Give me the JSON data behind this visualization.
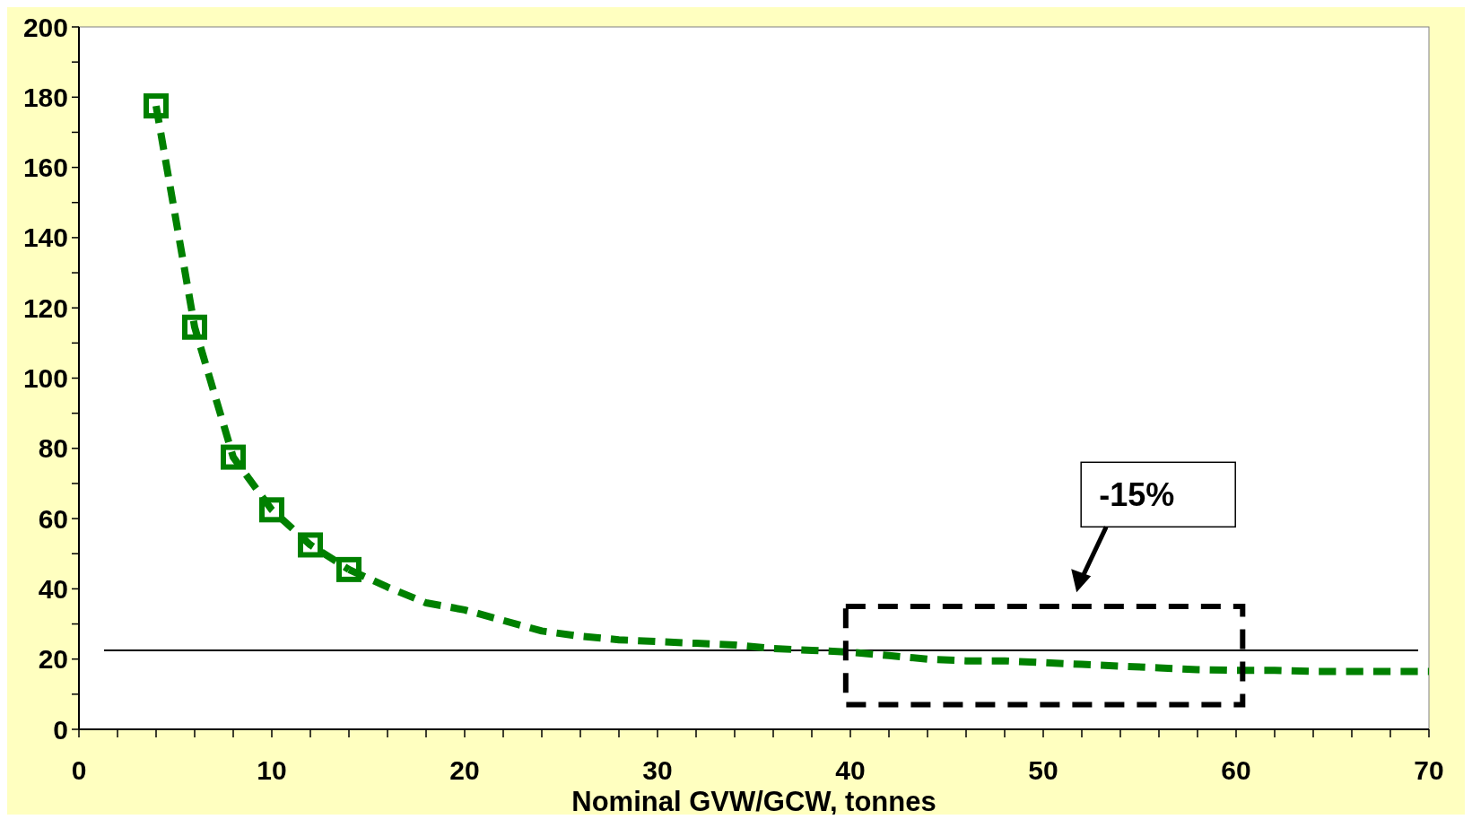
{
  "chart_data": {
    "type": "line",
    "xlabel": "Nominal GVW/GCW, tonnes",
    "xlim": [
      0,
      70
    ],
    "ylim": [
      0,
      200
    ],
    "xticks": [
      0,
      {
        "value": 2,
        "label": null
      },
      {
        "value": 4,
        "label": null
      },
      {
        "value": 6,
        "label": null
      },
      {
        "value": 8,
        "label": null
      },
      10,
      {
        "value": 12,
        "label": null
      },
      {
        "value": 14,
        "label": null
      },
      {
        "value": 16,
        "label": null
      },
      {
        "value": 18,
        "label": null
      },
      20,
      {
        "value": 22,
        "label": null
      },
      {
        "value": 24,
        "label": null
      },
      {
        "value": 26,
        "label": null
      },
      {
        "value": 28,
        "label": null
      },
      30,
      {
        "value": 32,
        "label": null
      },
      {
        "value": 34,
        "label": null
      },
      {
        "value": 36,
        "label": null
      },
      {
        "value": 38,
        "label": null
      },
      40,
      {
        "value": 42,
        "label": null
      },
      {
        "value": 44,
        "label": null
      },
      {
        "value": 46,
        "label": null
      },
      {
        "value": 48,
        "label": null
      },
      50,
      {
        "value": 52,
        "label": null
      },
      {
        "value": 54,
        "label": null
      },
      {
        "value": 56,
        "label": null
      },
      {
        "value": 58,
        "label": null
      },
      60,
      {
        "value": 62,
        "label": null
      },
      {
        "value": 64,
        "label": null
      },
      {
        "value": 66,
        "label": null
      },
      {
        "value": 68,
        "label": null
      },
      70
    ],
    "yticks": [
      0,
      {
        "value": 10,
        "label": null
      },
      20,
      {
        "value": 30,
        "label": null
      },
      40,
      {
        "value": 50,
        "label": null
      },
      60,
      {
        "value": 70,
        "label": null
      },
      80,
      {
        "value": 90,
        "label": null
      },
      100,
      {
        "value": 110,
        "label": null
      },
      120,
      {
        "value": 130,
        "label": null
      },
      140,
      {
        "value": 150,
        "label": null
      },
      160,
      {
        "value": 170,
        "label": null
      },
      180,
      {
        "value": 190,
        "label": null
      },
      200
    ],
    "line_style": "dashed",
    "grid": false,
    "series": [
      {
        "color": "#008000",
        "marker": "square",
        "x": [
          4,
          6,
          8,
          10,
          12,
          14
        ],
        "values": [
          177.5,
          114.5,
          77.5,
          62.5,
          52.5,
          45.5
        ]
      },
      {
        "color": "#008000",
        "marker": "none",
        "x": [
          14,
          16,
          18,
          20,
          22,
          24,
          26,
          28,
          30,
          32,
          34,
          36,
          38,
          40,
          42,
          44,
          46,
          48,
          50,
          52,
          54,
          56,
          58,
          60,
          62,
          64,
          66,
          68,
          70
        ],
        "values": [
          45.5,
          40.5,
          36,
          34,
          31,
          28,
          26.5,
          25.5,
          25,
          24.5,
          24,
          23,
          22.5,
          22,
          21,
          20,
          19.5,
          19.5,
          19,
          18.5,
          18,
          17.5,
          17,
          16.8,
          16.8,
          16.5,
          16.5,
          16.5,
          16.5
        ]
      }
    ],
    "ref_lines": [
      {
        "axis": "y",
        "value": 22.5,
        "color": "#000000",
        "line_style": "solid"
      }
    ],
    "annotations": [
      "-15%"
    ]
  }
}
